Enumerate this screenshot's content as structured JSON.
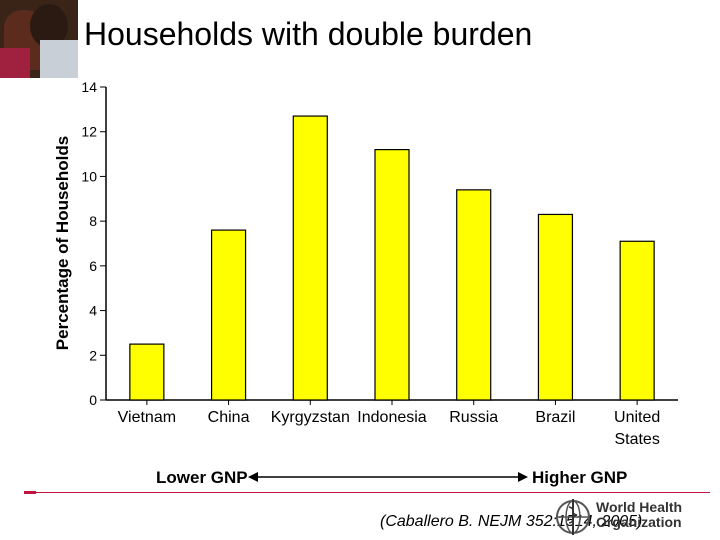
{
  "slide": {
    "title": "Households with double burden"
  },
  "citation": "(Caballero B. NEJM 352:1514, 2005)",
  "logo": {
    "line1": "World Health",
    "line2": "Organization"
  },
  "colors": {
    "bar": "#ffff00",
    "bar_stroke": "#000000",
    "rule": "#c0143c"
  },
  "chart_data": {
    "type": "bar",
    "categories": [
      "Vietnam",
      "China",
      "Kyrgyzstan",
      "Indonesia",
      "Russia",
      "Brazil",
      "United States"
    ],
    "values": [
      2.5,
      7.6,
      12.7,
      11.2,
      9.4,
      8.3,
      7.1
    ],
    "ylabel": "Percentage of Households",
    "yticks": [
      0,
      2,
      4,
      6,
      8,
      10,
      12,
      14
    ],
    "ylim": [
      0,
      14
    ],
    "grid": false,
    "annotation": {
      "left": "Lower GNP",
      "right": "Higher GNP"
    }
  }
}
